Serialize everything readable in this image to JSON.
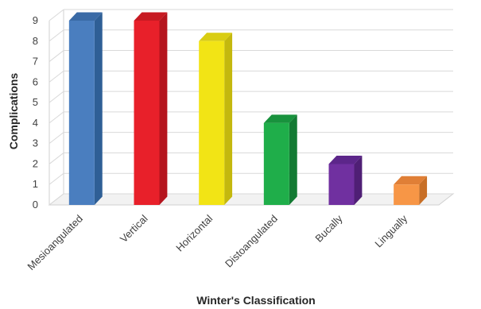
{
  "chart_data": {
    "type": "bar",
    "style": "3d-column",
    "categories": [
      "Mesioangulated",
      "Vertical",
      "Horizontal",
      "Distoangulated",
      "Bucally",
      "Lingually"
    ],
    "values": [
      9,
      9,
      8,
      4,
      2,
      1
    ],
    "colors": [
      "#4a7ebf",
      "#e8202a",
      "#f2e415",
      "#1fae4a",
      "#7030a0",
      "#f79646"
    ],
    "side_colors": [
      "#2f5f96",
      "#b5151e",
      "#c4b80e",
      "#137a33",
      "#4f1f75",
      "#c86f26"
    ],
    "top_colors": [
      "#3a6aa6",
      "#c71a22",
      "#d9cd12",
      "#18923d",
      "#5c268a",
      "#e07f36"
    ],
    "xlabel": "Winter's Classification",
    "ylabel": "Complications",
    "ylim": [
      0,
      9
    ],
    "yticks": [
      "0",
      "1",
      "2",
      "3",
      "4",
      "5",
      "6",
      "7",
      "8",
      "9"
    ],
    "grid": true,
    "legend": "none"
  }
}
